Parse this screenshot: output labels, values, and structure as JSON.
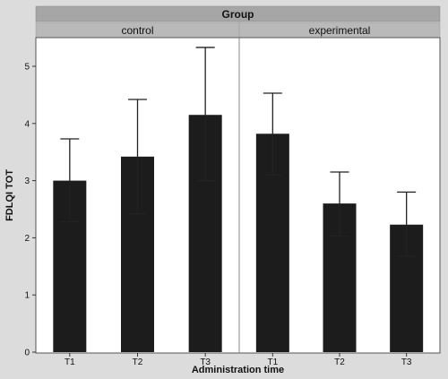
{
  "chart_data": {
    "type": "bar",
    "title": "Group",
    "xlabel": "Administration time",
    "ylabel": "FDLQI TOT",
    "ylim": [
      0,
      5.5
    ],
    "yticks": [
      0,
      1,
      2,
      3,
      4,
      5
    ],
    "grid": false,
    "facets": [
      {
        "name": "control",
        "categories": [
          "T1",
          "T2",
          "T3"
        ],
        "values": [
          3.0,
          3.42,
          4.15
        ],
        "error_low": [
          2.28,
          2.42,
          3.0
        ],
        "error_high": [
          3.73,
          4.42,
          5.33
        ]
      },
      {
        "name": "experimental",
        "categories": [
          "T1",
          "T2",
          "T3"
        ],
        "values": [
          3.82,
          2.6,
          2.23
        ],
        "error_low": [
          3.1,
          2.03,
          1.68
        ],
        "error_high": [
          4.53,
          3.15,
          2.8
        ]
      }
    ]
  },
  "colors": {
    "background": "#dcdcdc",
    "panel": "#ffffff",
    "bar": "#1c1c1c",
    "strip": "#b9b9b9",
    "group_header": "#a6a6a6"
  }
}
